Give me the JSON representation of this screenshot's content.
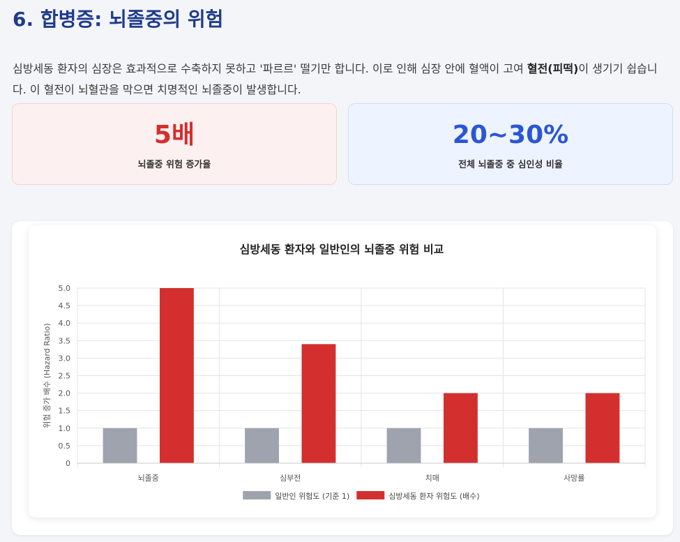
{
  "header": {
    "title": "6. 합병증: 뇌졸중의 위험"
  },
  "intro": {
    "text_before": "심방세동 환자의 심장은 효과적으로 수축하지 못하고 '파르르' 떨기만 합니다. 이로 인해 심장 안에 혈액이 고여 ",
    "emphasis": "혈전(피떡)",
    "text_after": "이 생기기 쉽습니다. 이 혈전이 뇌혈관을 막으면 치명적인 뇌졸중이 발생합니다."
  },
  "stats": [
    {
      "value": "5배",
      "label": "뇌졸중 위험 증가율",
      "color": "#d42e2e"
    },
    {
      "value": "20~30%",
      "label": "전체 뇌졸중 중 심인성 비율",
      "color": "#2b56d6"
    }
  ],
  "chart_data": {
    "type": "bar",
    "title": "심방세동 환자와 일반인의 뇌졸중 위험 비교",
    "xlabel": "",
    "ylabel": "위험 증가 배수 (Hazard Ratio)",
    "categories": [
      "뇌졸중",
      "심부전",
      "치매",
      "사망률"
    ],
    "ylim": [
      0,
      5
    ],
    "ytick_step": 0.5,
    "yticks": [
      "0",
      "0.5",
      "1.0",
      "1.5",
      "2.0",
      "2.5",
      "3.0",
      "3.5",
      "4.0",
      "4.5",
      "5.0"
    ],
    "grid": true,
    "legend_position": "bottom",
    "series": [
      {
        "name": "일반인 위험도 (기준 1)",
        "values": [
          1,
          1,
          1,
          1
        ],
        "color": "#9ea3ae"
      },
      {
        "name": "심방세동 환자 위험도 (배수)",
        "values": [
          5,
          3.4,
          2,
          2
        ],
        "color": "#d32f2f"
      }
    ]
  }
}
